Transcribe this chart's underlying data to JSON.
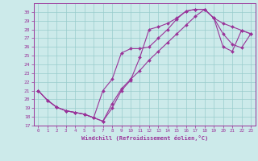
{
  "xlabel": "Windchill (Refroidissement éolien,°C)",
  "bg_color": "#cceaea",
  "grid_color": "#99cccc",
  "line_color": "#993399",
  "xlim": [
    -0.5,
    23.5
  ],
  "ylim": [
    17,
    31
  ],
  "xticks": [
    0,
    1,
    2,
    3,
    4,
    5,
    6,
    7,
    8,
    9,
    10,
    11,
    12,
    13,
    14,
    15,
    16,
    17,
    18,
    19,
    20,
    21,
    22,
    23
  ],
  "yticks": [
    17,
    18,
    19,
    20,
    21,
    22,
    23,
    24,
    25,
    26,
    27,
    28,
    29,
    30
  ],
  "series": [
    [
      21.0,
      19.9,
      19.1,
      18.7,
      18.5,
      18.3,
      17.9,
      17.5,
      19.0,
      21.0,
      22.2,
      24.8,
      28.0,
      28.3,
      28.7,
      29.3,
      30.1,
      30.3,
      30.3,
      29.3,
      28.7,
      28.3,
      27.9,
      27.5
    ],
    [
      21.0,
      19.9,
      19.1,
      18.7,
      18.5,
      18.3,
      17.9,
      21.0,
      22.3,
      25.3,
      25.8,
      25.8,
      26.0,
      27.0,
      28.0,
      29.2,
      30.1,
      30.3,
      30.3,
      29.3,
      26.0,
      25.5,
      27.9,
      27.5
    ],
    [
      21.0,
      19.9,
      19.1,
      18.7,
      18.5,
      18.3,
      17.9,
      17.5,
      19.5,
      21.2,
      22.3,
      23.3,
      24.5,
      25.5,
      26.5,
      27.5,
      28.5,
      29.5,
      30.3,
      29.3,
      27.5,
      26.3,
      25.9,
      27.5
    ]
  ]
}
